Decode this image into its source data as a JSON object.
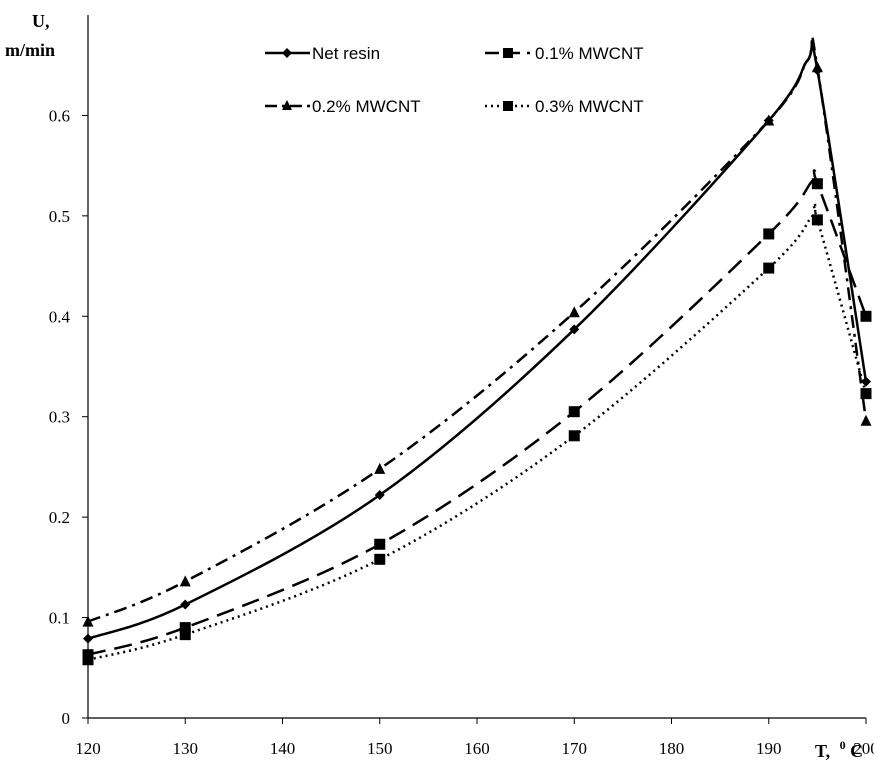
{
  "chart_data": {
    "type": "line",
    "ylabel_line1": "U,",
    "ylabel_line2": "m/min",
    "xlabel_main": "T,",
    "xlabel_sup": "0",
    "xlabel_unit": "C",
    "xlim": [
      120,
      200
    ],
    "ylim": [
      0,
      0.7
    ],
    "x_ticks": [
      120,
      130,
      140,
      150,
      160,
      170,
      180,
      190,
      200
    ],
    "y_ticks": [
      0,
      0.1,
      0.2,
      0.3,
      0.4,
      0.5,
      0.6
    ],
    "x_tick_labels": [
      "120",
      "130",
      "140",
      "150",
      "160",
      "170",
      "180",
      "190",
      "200"
    ],
    "y_tick_labels": [
      "0",
      "0.1",
      "0.2",
      "0.3",
      "0.4",
      "0.5",
      "0.6"
    ],
    "grid": false,
    "legend_position": "top",
    "series": [
      {
        "name": "Net resin",
        "marker": "diamond",
        "dash": "solid",
        "color": "#000000",
        "x": [
          120,
          130,
          150,
          170,
          190,
          195,
          200
        ],
        "y": [
          0.079,
          0.113,
          0.222,
          0.387,
          0.595,
          0.645,
          0.335
        ],
        "curve_peak": [
          194,
          0.655
        ]
      },
      {
        "name": "0.1% MWCNT",
        "marker": "square",
        "dash": "long-dash",
        "color": "#000000",
        "x": [
          120,
          130,
          150,
          170,
          190,
          195,
          200
        ],
        "y": [
          0.063,
          0.09,
          0.173,
          0.305,
          0.482,
          0.532,
          0.4
        ],
        "curve_peak": [
          194.5,
          0.535
        ]
      },
      {
        "name": "0.2% MWCNT",
        "marker": "triangle",
        "dash": "dash-dot",
        "color": "#000000",
        "x": [
          120,
          130,
          150,
          170,
          190,
          195,
          200
        ],
        "y": [
          0.096,
          0.136,
          0.248,
          0.404,
          0.595,
          0.648,
          0.296
        ],
        "curve_peak": [
          194,
          0.655
        ]
      },
      {
        "name": "0.3% MWCNT",
        "marker": "square",
        "dash": "dotted",
        "color": "#000000",
        "x": [
          120,
          130,
          150,
          170,
          190,
          195,
          200
        ],
        "y": [
          0.058,
          0.083,
          0.158,
          0.281,
          0.448,
          0.496,
          0.323
        ],
        "curve_peak": [
          194.5,
          0.5
        ]
      }
    ]
  }
}
